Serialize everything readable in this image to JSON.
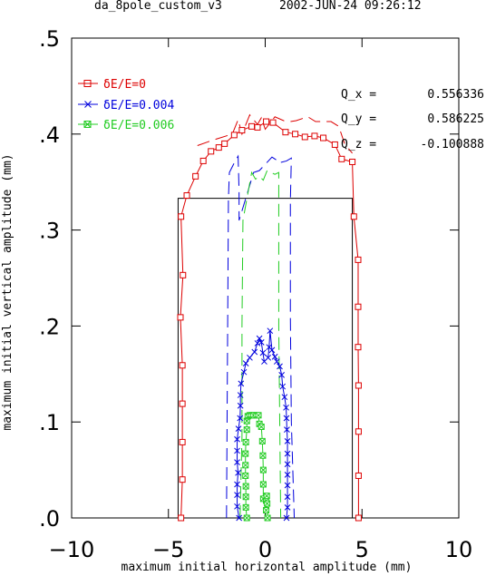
{
  "header": {
    "file": "da_8pole_custom_v3",
    "datetime": "2002-JUN-24  09:26:12"
  },
  "tunes": [
    {
      "label": "Q_x =",
      "value": "0.556336"
    },
    {
      "label": "Q_y =",
      "value": "0.586225"
    },
    {
      "label": "Q_z =",
      "value": "-0.100888"
    }
  ],
  "chart_data": {
    "type": "line",
    "title": "",
    "xlabel": "maximum initial horizontal amplitude (mm)",
    "ylabel": "maximum initial vertical amplitude (mm)",
    "xlim": [
      -10,
      10
    ],
    "ylim": [
      0,
      0.5
    ],
    "x_ticks": [
      -10,
      -5,
      0,
      5,
      10
    ],
    "x_tick_labels": [
      "−10",
      "−5",
      "0",
      "5",
      "10"
    ],
    "y_ticks": [
      0,
      0.1,
      0.2,
      0.3,
      0.4,
      0.5
    ],
    "y_tick_labels": [
      ".0",
      ".1",
      ".2",
      ".3",
      ".4",
      ".5"
    ],
    "legend_position": "top-left",
    "reference_box": {
      "x": [
        -4.5,
        4.5
      ],
      "y": [
        0,
        0.333
      ]
    },
    "series": [
      {
        "name": "δE/E=0",
        "color": "#dd0000",
        "marker": "square",
        "points": [
          [
            -4.35,
            0.0
          ],
          [
            -4.28,
            0.04
          ],
          [
            -4.28,
            0.079
          ],
          [
            -4.28,
            0.119
          ],
          [
            -4.28,
            0.159
          ],
          [
            -4.38,
            0.209
          ],
          [
            -4.25,
            0.253
          ],
          [
            -4.35,
            0.314
          ],
          [
            -4.05,
            0.336
          ],
          [
            -3.6,
            0.356
          ],
          [
            -3.2,
            0.372
          ],
          [
            -2.8,
            0.382
          ],
          [
            -2.4,
            0.386
          ],
          [
            -2.1,
            0.39
          ],
          [
            -1.6,
            0.399
          ],
          [
            -1.2,
            0.404
          ],
          [
            -0.7,
            0.408
          ],
          [
            -0.4,
            0.407
          ],
          [
            0.05,
            0.413
          ],
          [
            0.4,
            0.412
          ],
          [
            1.05,
            0.402
          ],
          [
            1.55,
            0.4
          ],
          [
            2.05,
            0.397
          ],
          [
            2.55,
            0.398
          ],
          [
            3.0,
            0.396
          ],
          [
            3.6,
            0.389
          ],
          [
            3.95,
            0.374
          ],
          [
            4.5,
            0.371
          ],
          [
            4.58,
            0.314
          ],
          [
            4.8,
            0.269
          ],
          [
            4.8,
            0.22
          ],
          [
            4.8,
            0.178
          ],
          [
            4.82,
            0.138
          ],
          [
            4.82,
            0.09
          ],
          [
            4.82,
            0.044
          ],
          [
            4.82,
            0.0
          ]
        ]
      },
      {
        "name": "δE/E=0.004",
        "color": "#0000dd",
        "marker": "x",
        "points": [
          [
            -1.35,
            0.0
          ],
          [
            -1.45,
            0.012
          ],
          [
            -1.45,
            0.024
          ],
          [
            -1.45,
            0.035
          ],
          [
            -1.4,
            0.047
          ],
          [
            -1.45,
            0.058
          ],
          [
            -1.45,
            0.07
          ],
          [
            -1.45,
            0.082
          ],
          [
            -1.38,
            0.093
          ],
          [
            -1.3,
            0.104
          ],
          [
            -1.28,
            0.117
          ],
          [
            -1.28,
            0.128
          ],
          [
            -1.25,
            0.14
          ],
          [
            -1.1,
            0.152
          ],
          [
            -1.0,
            0.161
          ],
          [
            -0.8,
            0.167
          ],
          [
            -0.55,
            0.173
          ],
          [
            -0.4,
            0.182
          ],
          [
            -0.3,
            0.187
          ],
          [
            -0.2,
            0.183
          ],
          [
            -0.12,
            0.172
          ],
          [
            -0.05,
            0.163
          ],
          [
            0.15,
            0.167
          ],
          [
            0.2,
            0.178
          ],
          [
            0.25,
            0.195
          ],
          [
            0.35,
            0.175
          ],
          [
            0.5,
            0.168
          ],
          [
            0.6,
            0.163
          ],
          [
            0.75,
            0.158
          ],
          [
            0.85,
            0.149
          ],
          [
            0.9,
            0.137
          ],
          [
            1.0,
            0.126
          ],
          [
            1.08,
            0.115
          ],
          [
            1.1,
            0.104
          ],
          [
            1.12,
            0.092
          ],
          [
            1.15,
            0.08
          ],
          [
            1.15,
            0.067
          ],
          [
            1.15,
            0.056
          ],
          [
            1.15,
            0.045
          ],
          [
            1.15,
            0.034
          ],
          [
            1.15,
            0.022
          ],
          [
            1.15,
            0.011
          ],
          [
            1.1,
            0.0
          ]
        ]
      },
      {
        "name": "δE/E=0.006",
        "color": "#22cc22",
        "marker": "boxed-x",
        "points": [
          [
            -0.95,
            0.0
          ],
          [
            -1.0,
            0.011
          ],
          [
            -1.0,
            0.022
          ],
          [
            -1.0,
            0.033
          ],
          [
            -1.02,
            0.044
          ],
          [
            -1.02,
            0.055
          ],
          [
            -1.02,
            0.067
          ],
          [
            -1.0,
            0.079
          ],
          [
            -0.95,
            0.092
          ],
          [
            -0.95,
            0.101
          ],
          [
            -0.9,
            0.106
          ],
          [
            -0.8,
            0.107
          ],
          [
            -0.7,
            0.107
          ],
          [
            -0.6,
            0.107
          ],
          [
            -0.45,
            0.107
          ],
          [
            -0.35,
            0.107
          ],
          [
            -0.3,
            0.098
          ],
          [
            -0.2,
            0.095
          ],
          [
            -0.15,
            0.08
          ],
          [
            -0.12,
            0.065
          ],
          [
            -0.1,
            0.05
          ],
          [
            -0.1,
            0.035
          ],
          [
            -0.1,
            0.02
          ],
          [
            0.05,
            0.008
          ],
          [
            0.05,
            0.018
          ],
          [
            0.08,
            0.023
          ],
          [
            0.1,
            0.015
          ],
          [
            0.12,
            0.0
          ]
        ]
      }
    ],
    "dashed_envelopes": [
      {
        "color": "#dd0000",
        "points": [
          [
            -3.5,
            0.388
          ],
          [
            -2.8,
            0.393
          ],
          [
            -2.5,
            0.395
          ],
          [
            -1.7,
            0.4
          ],
          [
            -1.4,
            0.415
          ],
          [
            -1.2,
            0.4
          ],
          [
            -0.8,
            0.42
          ],
          [
            -0.4,
            0.41
          ],
          [
            -0.2,
            0.417
          ],
          [
            0.0,
            0.405
          ],
          [
            0.5,
            0.418
          ],
          [
            0.95,
            0.414
          ],
          [
            1.3,
            0.413
          ],
          [
            1.6,
            0.414
          ],
          [
            2.2,
            0.418
          ],
          [
            2.6,
            0.413
          ],
          [
            3.4,
            0.413
          ],
          [
            3.8,
            0.408
          ],
          [
            4.1,
            0.39
          ],
          [
            4.5,
            0.38
          ]
        ]
      },
      {
        "color": "#0000dd",
        "points": [
          [
            -2.0,
            0.0
          ],
          [
            -1.9,
            0.333
          ],
          [
            -1.85,
            0.36
          ],
          [
            -1.6,
            0.37
          ],
          [
            -1.4,
            0.377
          ],
          [
            -1.35,
            0.34
          ],
          [
            -1.35,
            0.31
          ],
          [
            -0.6,
            0.36
          ],
          [
            -0.3,
            0.362
          ],
          [
            0.35,
            0.376
          ],
          [
            0.65,
            0.372
          ],
          [
            0.7,
            0.37
          ],
          [
            1.1,
            0.372
          ],
          [
            1.35,
            0.375
          ],
          [
            1.3,
            0.33
          ],
          [
            1.3,
            0.21
          ],
          [
            1.35,
            0.1
          ],
          [
            1.5,
            0.0
          ]
        ]
      },
      {
        "color": "#22cc22",
        "points": [
          [
            -1.3,
            0.0
          ],
          [
            -1.2,
            0.085
          ],
          [
            -1.2,
            0.2
          ],
          [
            -1.15,
            0.31
          ],
          [
            -0.7,
            0.36
          ],
          [
            -0.5,
            0.353
          ],
          [
            -0.3,
            0.356
          ],
          [
            -0.1,
            0.352
          ],
          [
            0.1,
            0.362
          ],
          [
            0.5,
            0.358
          ],
          [
            0.7,
            0.36
          ],
          [
            0.7,
            0.333
          ],
          [
            0.7,
            0.2
          ],
          [
            0.75,
            0.1
          ],
          [
            0.8,
            0.0
          ]
        ]
      }
    ]
  }
}
